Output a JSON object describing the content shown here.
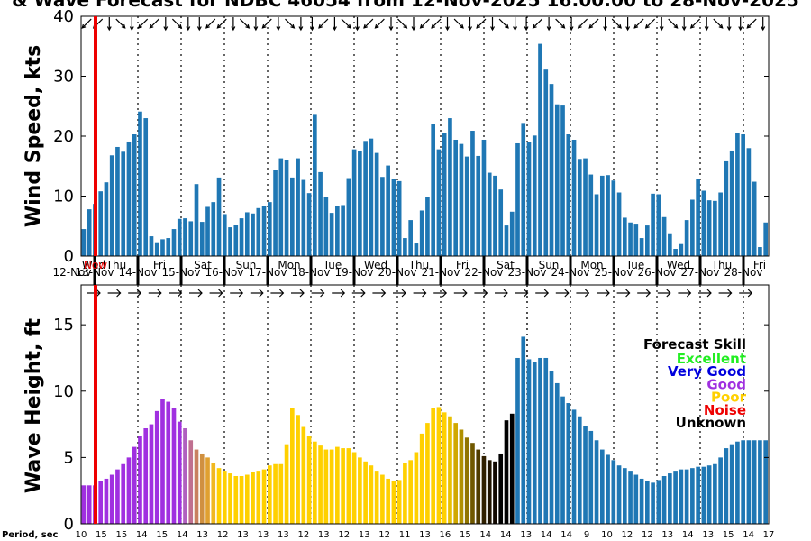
{
  "title": "& Wave Forecast for NDBC 46054 from 12-Nov-2025 16:00:00 to 28-Nov-2025",
  "now_label": "Now",
  "period_label": "Period, sec",
  "legend": {
    "title": "Forecast Skill",
    "items": [
      {
        "label": "Excellent",
        "color": "#22ee22"
      },
      {
        "label": "Very Good",
        "color": "#0000dd"
      },
      {
        "label": "Good",
        "color": "#a030e0"
      },
      {
        "label": "Poor",
        "color": "#ffd000"
      },
      {
        "label": "Noise",
        "color": "#ee0000"
      },
      {
        "label": "Unknown",
        "color": "#000000"
      }
    ]
  },
  "colors": {
    "bar_blue": "#1f77b4",
    "now_line": "#ee0000",
    "arrow": "#000000"
  },
  "days": [
    {
      "dow": "Wed",
      "date": "12-Nov"
    },
    {
      "dow": "Thu",
      "date": "13-Nov"
    },
    {
      "dow": "Fri",
      "date": "14-Nov"
    },
    {
      "dow": "Sat",
      "date": "15-Nov"
    },
    {
      "dow": "Sun",
      "date": "16-Nov"
    },
    {
      "dow": "Mon",
      "date": "17-Nov"
    },
    {
      "dow": "Tue",
      "date": "18-Nov"
    },
    {
      "dow": "Wed",
      "date": "19-Nov"
    },
    {
      "dow": "Thu",
      "date": "20-Nov"
    },
    {
      "dow": "Fri",
      "date": "21-Nov"
    },
    {
      "dow": "Sat",
      "date": "22-Nov"
    },
    {
      "dow": "Sun",
      "date": "23-Nov"
    },
    {
      "dow": "Mon",
      "date": "24-Nov"
    },
    {
      "dow": "Tue",
      "date": "25-Nov"
    },
    {
      "dow": "Wed",
      "date": "26-Nov"
    },
    {
      "dow": "Thu",
      "date": "27-Nov"
    },
    {
      "dow": "Fri",
      "date": "28-Nov"
    }
  ],
  "chart_data": [
    {
      "type": "bar",
      "ylabel": "Wind Speed, kts",
      "ylim": [
        0,
        40
      ],
      "yticks": [
        0,
        10,
        20,
        30,
        40
      ],
      "grid": "dotted vertical lines at 00:00 and 12:00 each day",
      "values": [
        4.5,
        7.8,
        8.7,
        10.8,
        12.3,
        16.8,
        18.2,
        17.4,
        19.1,
        20.3,
        24.1,
        23.0,
        3.3,
        2.3,
        2.8,
        3.0,
        4.5,
        6.2,
        6.3,
        5.8,
        12.0,
        5.7,
        8.2,
        9.0,
        13.1,
        7.0,
        4.8,
        5.2,
        6.3,
        7.3,
        7.1,
        8.0,
        8.4,
        9.0,
        14.3,
        16.3,
        16.0,
        13.1,
        16.3,
        12.7,
        10.5,
        23.7,
        14.0,
        9.8,
        7.2,
        8.4,
        8.5,
        13.0,
        17.8,
        17.5,
        19.2,
        19.6,
        17.2,
        13.2,
        15.1,
        12.8,
        12.5,
        3.0,
        6.0,
        2.1,
        7.6,
        9.9,
        22.0,
        17.8,
        20.6,
        23.0,
        19.4,
        18.7,
        16.6,
        20.9,
        16.7,
        19.4,
        13.9,
        13.4,
        11.1,
        5.1,
        7.4,
        18.8,
        22.2,
        19.0,
        20.1,
        35.4,
        31.1,
        28.7,
        25.3,
        25.1,
        20.3,
        19.4,
        16.2,
        16.3,
        13.6,
        10.3,
        13.4,
        13.5,
        12.6,
        10.6,
        6.4,
        5.6,
        5.4,
        3.0,
        5.1,
        10.4,
        10.3,
        6.5,
        3.8,
        1.2,
        2.0,
        6.0,
        9.4,
        12.8,
        10.9,
        9.3,
        9.2,
        10.6,
        15.8,
        17.6,
        20.6,
        20.3,
        18.0,
        12.4,
        1.5,
        5.6
      ],
      "wind_directions_deg": [
        135,
        135,
        135,
        135,
        90,
        90,
        45,
        45,
        90,
        90,
        135,
        135,
        135,
        90,
        90,
        45,
        45,
        90,
        90,
        90,
        90,
        90,
        135,
        135,
        135,
        90,
        90,
        45,
        45,
        90,
        90,
        135,
        135,
        135,
        90,
        90,
        45,
        45,
        90,
        90,
        90,
        135,
        135,
        135,
        90,
        90,
        45,
        45,
        90,
        90,
        135,
        135,
        135,
        90,
        90,
        45,
        45,
        90,
        90,
        90,
        135,
        135,
        135,
        90,
        90,
        45,
        45,
        90,
        90,
        135,
        135,
        135,
        90,
        90,
        45,
        45,
        90,
        90,
        90,
        135,
        135,
        135,
        90,
        90,
        45,
        45,
        90,
        90,
        135,
        135,
        135,
        90,
        90,
        45,
        45,
        90,
        90,
        90,
        135,
        135,
        135,
        90,
        90,
        45,
        45,
        90,
        90,
        135,
        135,
        135,
        90,
        90,
        45,
        45,
        90,
        90,
        90,
        135,
        135,
        135,
        90,
        90
      ]
    },
    {
      "type": "bar",
      "ylabel": "Wave Height, ft",
      "ylim": [
        0,
        18
      ],
      "yticks": [
        0,
        5,
        10,
        15
      ],
      "values": [
        2.9,
        2.9,
        2.9,
        3.2,
        3.4,
        3.7,
        4.1,
        4.5,
        5.0,
        5.8,
        6.6,
        7.2,
        7.5,
        8.5,
        9.4,
        9.2,
        8.7,
        7.7,
        7.2,
        6.3,
        5.6,
        5.3,
        5.0,
        4.6,
        4.2,
        4.0,
        3.8,
        3.6,
        3.6,
        3.7,
        3.9,
        4.0,
        4.1,
        4.4,
        4.5,
        4.5,
        6.0,
        8.7,
        8.2,
        7.3,
        6.6,
        6.2,
        5.9,
        5.6,
        5.6,
        5.8,
        5.7,
        5.7,
        5.4,
        5.0,
        4.7,
        4.4,
        4.0,
        3.7,
        3.4,
        3.2,
        3.3,
        4.6,
        4.8,
        5.4,
        6.8,
        7.6,
        8.7,
        8.8,
        8.4,
        8.1,
        7.6,
        7.1,
        6.5,
        6.1,
        5.6,
        5.1,
        4.8,
        4.7,
        5.3,
        7.8,
        8.3,
        12.5,
        14.1,
        12.4,
        12.2,
        12.5,
        12.5,
        11.5,
        10.6,
        9.6,
        9.1,
        8.6,
        8.1,
        7.4,
        7.0,
        6.3,
        5.6,
        5.2,
        4.8,
        4.4,
        4.2,
        4.0,
        3.7,
        3.4,
        3.2,
        3.1,
        3.3,
        3.6,
        3.8,
        4.0,
        4.1,
        4.1,
        4.2,
        4.3,
        4.3,
        4.4,
        4.5,
        5.0,
        5.7,
        6.0,
        6.2,
        6.3,
        6.3,
        6.3,
        6.3,
        6.3
      ],
      "bar_colors": [
        "#a030e0",
        "#a030e0",
        "#a030e0",
        "#a030e0",
        "#a030e0",
        "#a030e0",
        "#a030e0",
        "#a030e0",
        "#a030e0",
        "#a030e0",
        "#a030e0",
        "#a030e0",
        "#a030e0",
        "#a030e0",
        "#a030e0",
        "#a030e0",
        "#a030e0",
        "#a030e0",
        "#b060c0",
        "#c07090",
        "#c88060",
        "#d09040",
        "#e0a030",
        "#f0b820",
        "#ffd000",
        "#ffd000",
        "#ffd000",
        "#ffd000",
        "#ffd000",
        "#ffd000",
        "#ffd000",
        "#ffd000",
        "#ffd000",
        "#ffd000",
        "#ffd000",
        "#ffd000",
        "#ffd000",
        "#ffd000",
        "#ffd000",
        "#ffd000",
        "#ffd000",
        "#ffd000",
        "#ffd000",
        "#ffd000",
        "#ffd000",
        "#ffd000",
        "#ffd000",
        "#ffd000",
        "#ffd000",
        "#ffd000",
        "#ffd000",
        "#ffd000",
        "#ffd000",
        "#ffd000",
        "#ffd000",
        "#ffd000",
        "#ffd000",
        "#ffd000",
        "#ffd000",
        "#ffd000",
        "#ffd000",
        "#ffd000",
        "#ffd000",
        "#ffd000",
        "#ffd000",
        "#e8c000",
        "#d0a800",
        "#b09000",
        "#907400",
        "#705800",
        "#503c00",
        "#302000",
        "#201400",
        "#100800",
        "#000000",
        "#000000",
        "#000000",
        "#1f77b4",
        "#1f77b4",
        "#1f77b4",
        "#1f77b4",
        "#1f77b4",
        "#1f77b4",
        "#1f77b4",
        "#1f77b4",
        "#1f77b4",
        "#1f77b4",
        "#1f77b4",
        "#1f77b4",
        "#1f77b4",
        "#1f77b4",
        "#1f77b4",
        "#1f77b4",
        "#1f77b4",
        "#1f77b4",
        "#1f77b4",
        "#1f77b4",
        "#1f77b4",
        "#1f77b4",
        "#1f77b4",
        "#1f77b4",
        "#1f77b4",
        "#1f77b4",
        "#1f77b4",
        "#1f77b4",
        "#1f77b4",
        "#1f77b4",
        "#1f77b4",
        "#1f77b4",
        "#1f77b4",
        "#1f77b4",
        "#1f77b4",
        "#1f77b4",
        "#1f77b4",
        "#1f77b4",
        "#1f77b4",
        "#1f77b4",
        "#1f77b4",
        "#1f77b4",
        "#1f77b4",
        "#1f77b4",
        "#1f77b4"
      ],
      "periods_sec": [
        "10",
        "15",
        "15",
        "14",
        "15",
        "14",
        "13",
        "12",
        "13",
        "13",
        "13",
        "12",
        "13",
        "12",
        "13",
        "12",
        "11",
        "13",
        "16",
        "15",
        "14",
        "14",
        "13",
        "14",
        "14",
        "9",
        "10",
        "12",
        "12",
        "13",
        "14",
        "13",
        "15",
        "14",
        "17"
      ],
      "wave_direction": "east"
    }
  ]
}
